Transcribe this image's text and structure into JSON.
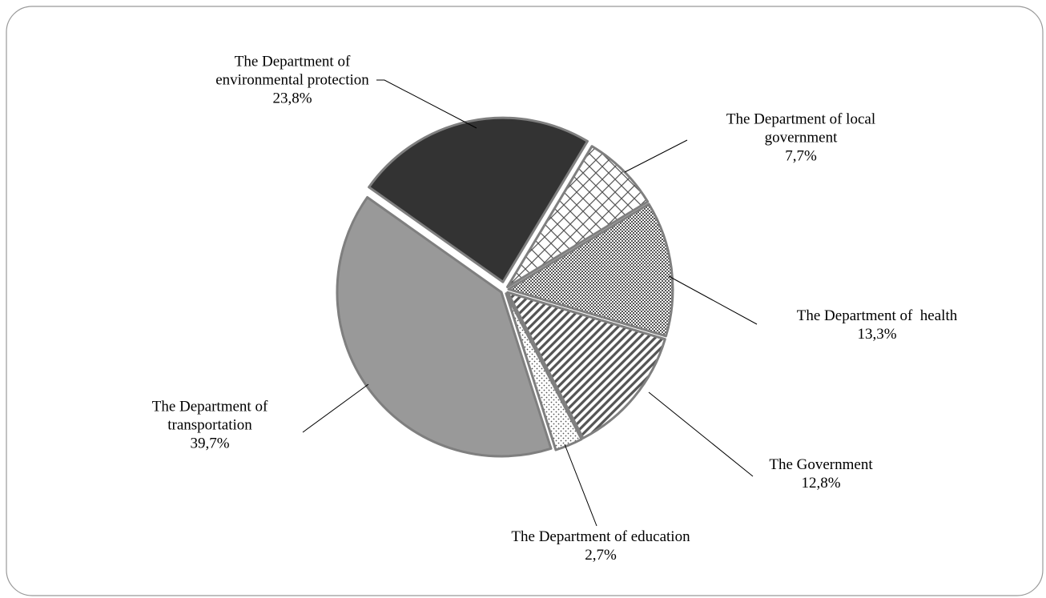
{
  "chart_data": {
    "type": "pie",
    "categories": [
      "The Department of environmental protection",
      "The Department of local government",
      "The Department of  health",
      "The Government",
      "The Department of education",
      "The Department of transportation"
    ],
    "values": [
      23.8,
      7.7,
      13.3,
      12.8,
      2.7,
      39.7
    ],
    "value_labels": [
      "23,8%",
      "7,7%",
      "13,3%",
      "12,8%",
      "2,7%",
      "39,7%"
    ],
    "colors": [
      "#333333",
      "#555555",
      "#555555",
      "#555555",
      "#555555",
      "#999999"
    ],
    "patterns": [
      "solid",
      "cross",
      "checker",
      "stripes",
      "dots",
      "solid"
    ]
  }
}
